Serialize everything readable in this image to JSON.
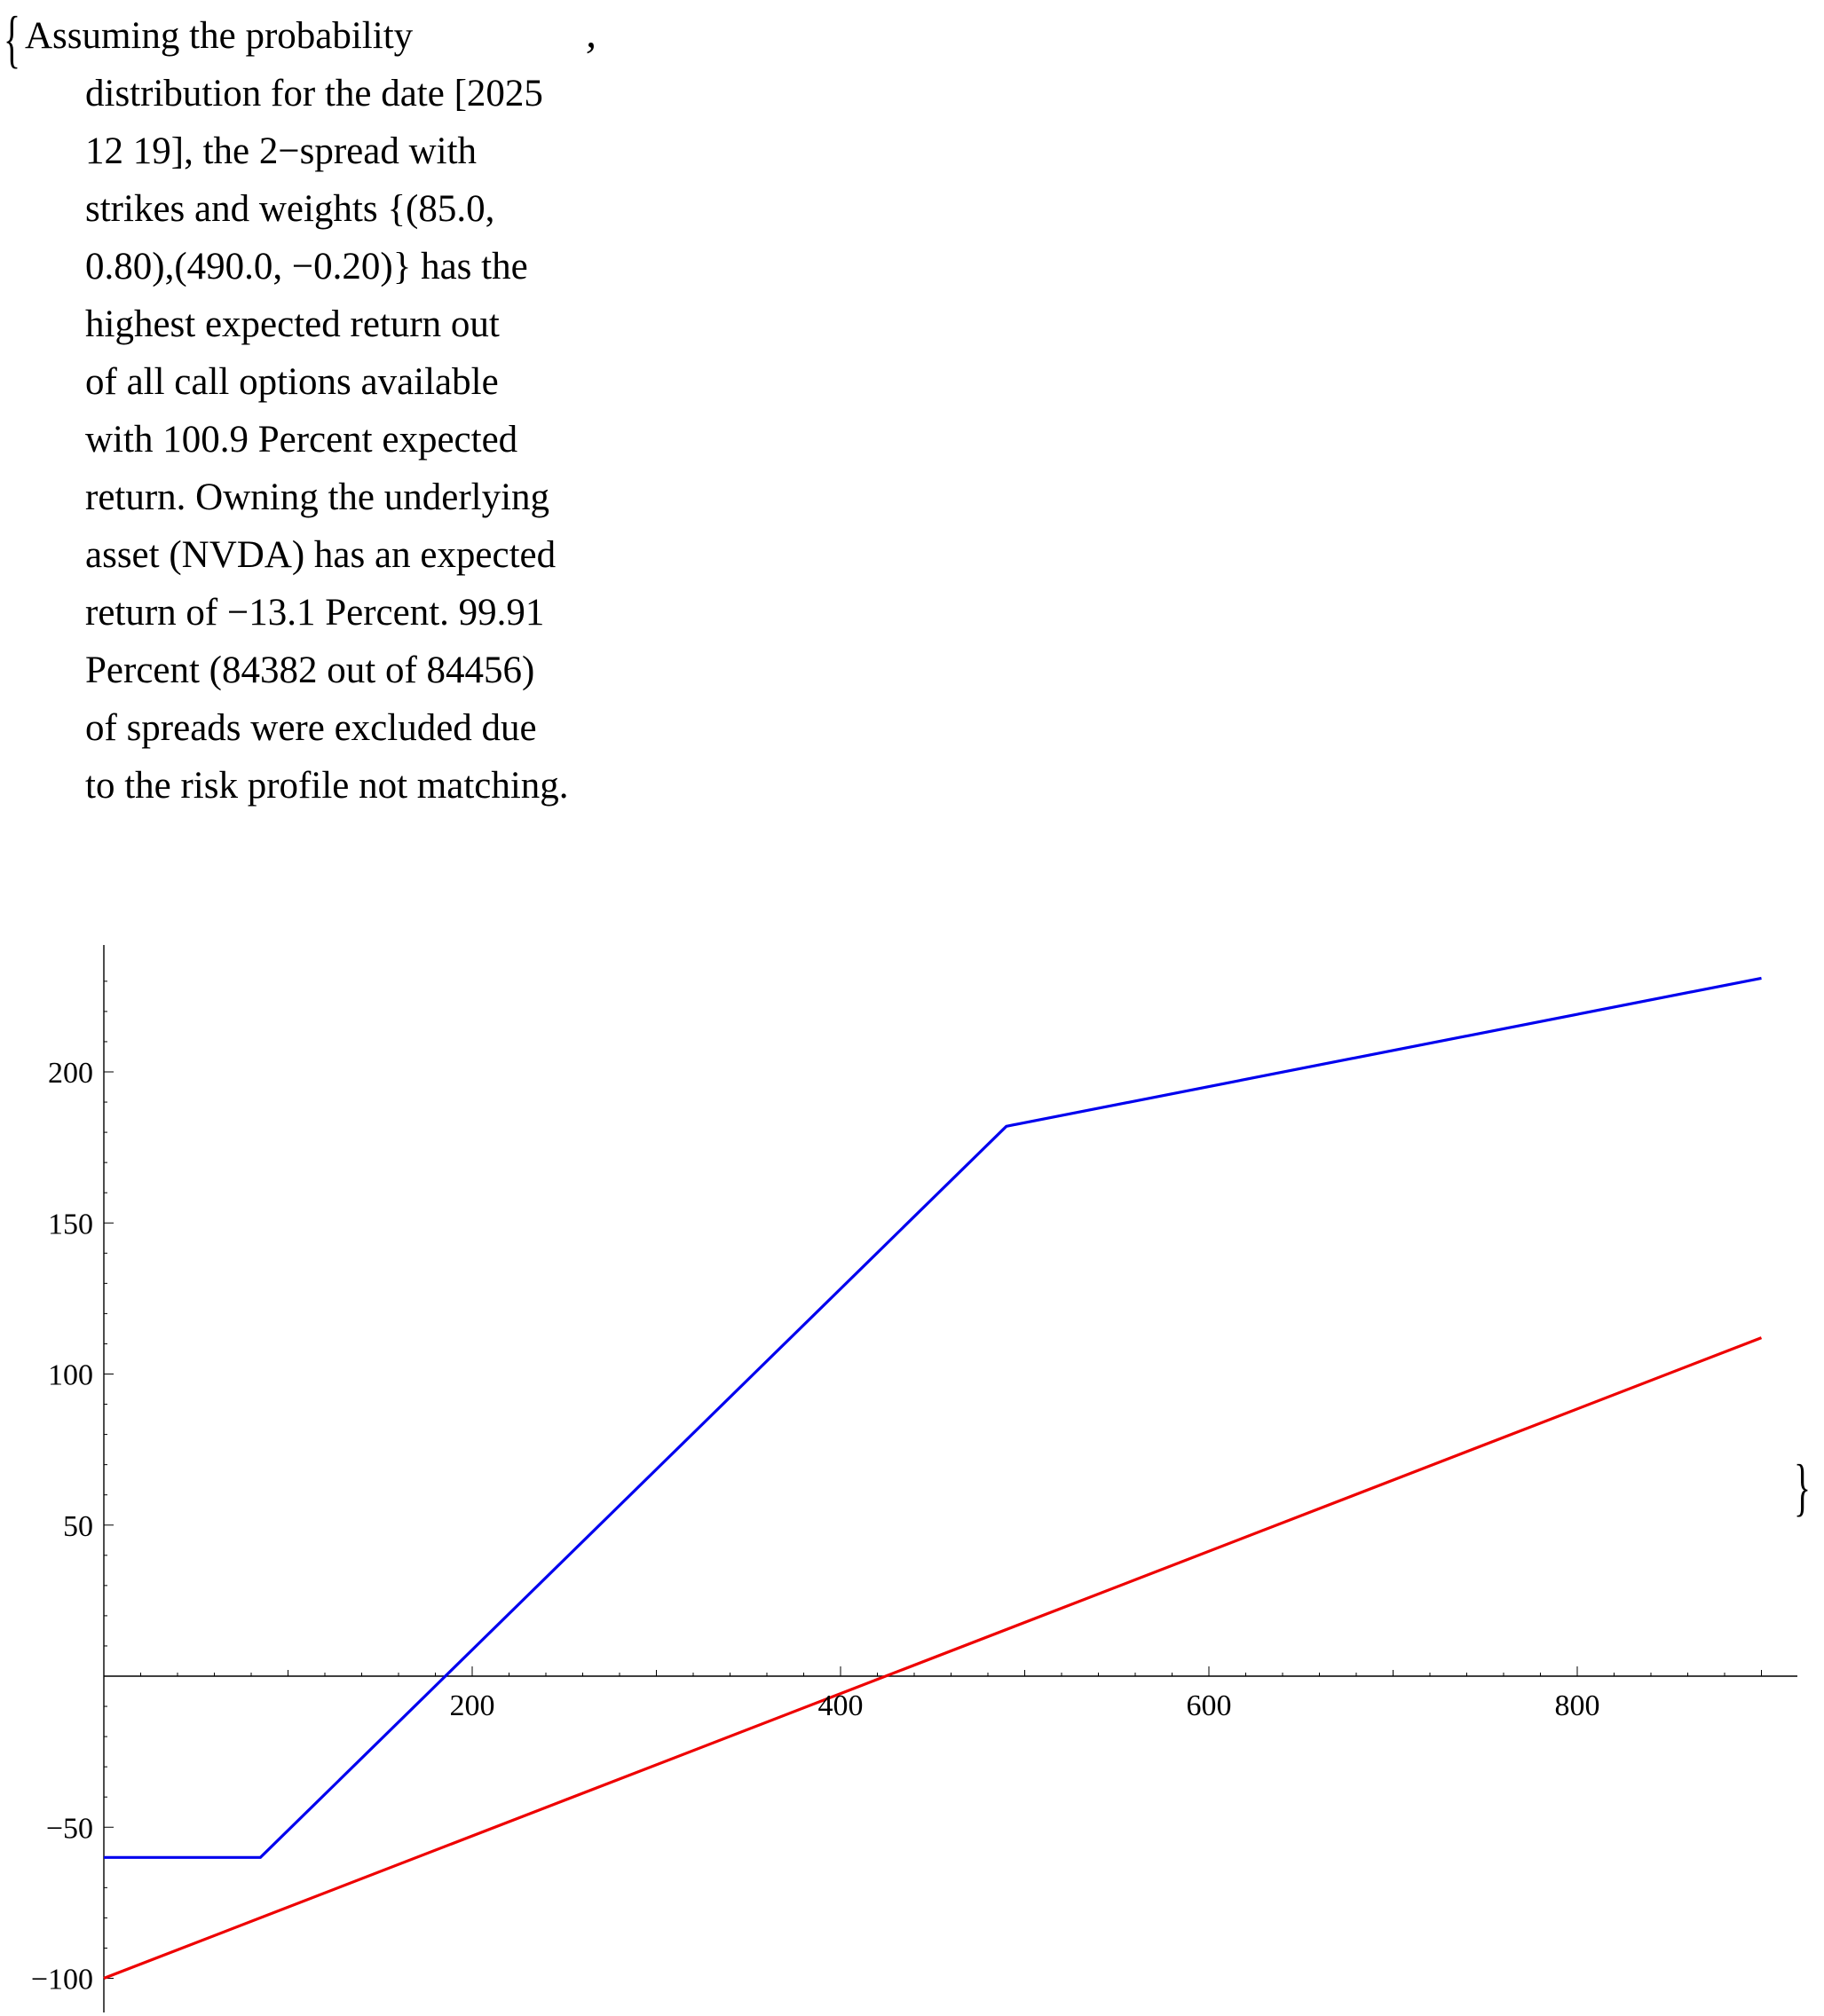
{
  "output": {
    "open_brace": "{",
    "close_brace": "}",
    "separator": ",",
    "message_lines": [
      "Assuming the probability",
      "distribution for the date [2025",
      "12 19], the 2−spread with",
      "strikes and weights {(85.0,",
      "0.80),(490.0, −0.20)} has the",
      "highest expected return out",
      "of all call options available",
      "with 100.9 Percent expected",
      "return. Owning the underlying",
      "asset (NVDA) has an expected",
      "return of −13.1 Percent. 99.91",
      "Percent (84382 out of 84456)",
      "of spreads were excluded due",
      "to the risk profile not matching."
    ]
  },
  "chart_data": {
    "type": "line",
    "title": "",
    "xlabel": "",
    "ylabel": "",
    "xlim": [
      0,
      920
    ],
    "ylim": [
      -110,
      240
    ],
    "x_ticks": [
      200,
      400,
      600,
      800
    ],
    "x_tick_labels": [
      "200",
      "400",
      "600",
      "800"
    ],
    "y_ticks": [
      -100,
      -50,
      50,
      100,
      150,
      200
    ],
    "y_tick_labels": [
      "−100",
      "−50",
      "50",
      "100",
      "150",
      "200"
    ],
    "grid": false,
    "legend": "none",
    "series": [
      {
        "color": "#0000ee",
        "points": [
          [
            0,
            -60
          ],
          [
            85,
            -60
          ],
          [
            490,
            182
          ],
          [
            900,
            231
          ]
        ]
      },
      {
        "color": "#ee0000",
        "points": [
          [
            0,
            -100
          ],
          [
            900,
            112
          ]
        ]
      }
    ]
  }
}
